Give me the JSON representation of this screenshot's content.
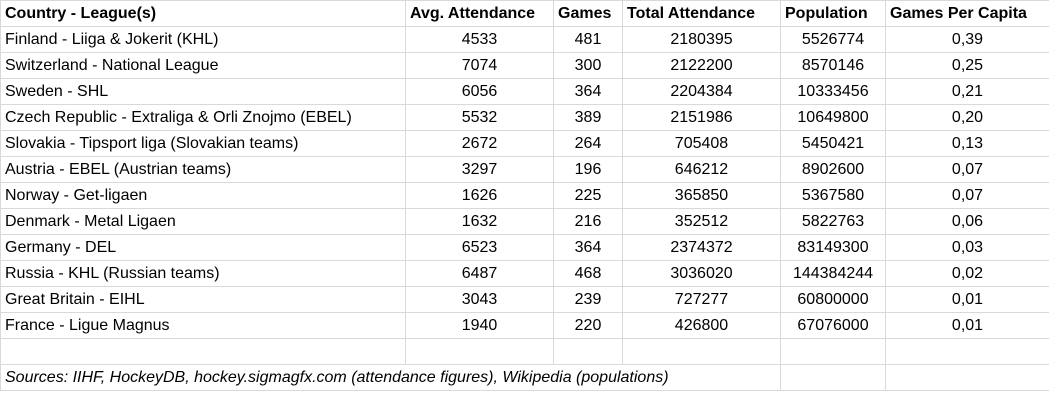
{
  "headers": [
    "Country - League(s)",
    "Avg. Attendance",
    "Games",
    "Total Attendance",
    "Population",
    "Games Per Capita"
  ],
  "rows": [
    [
      "Finland - Liiga & Jokerit (KHL)",
      "4533",
      "481",
      "2180395",
      "5526774",
      "0,39"
    ],
    [
      "Switzerland - National League",
      "7074",
      "300",
      "2122200",
      "8570146",
      "0,25"
    ],
    [
      "Sweden - SHL",
      "6056",
      "364",
      "2204384",
      "10333456",
      "0,21"
    ],
    [
      "Czech Republic - Extraliga & Orli Znojmo (EBEL)",
      "5532",
      "389",
      "2151986",
      "10649800",
      "0,20"
    ],
    [
      "Slovakia - Tipsport liga (Slovakian teams)",
      "2672",
      "264",
      "705408",
      "5450421",
      "0,13"
    ],
    [
      "Austria - EBEL (Austrian teams)",
      "3297",
      "196",
      "646212",
      "8902600",
      "0,07"
    ],
    [
      "Norway - Get-ligaen",
      "1626",
      "225",
      "365850",
      "5367580",
      "0,07"
    ],
    [
      "Denmark - Metal Ligaen",
      "1632",
      "216",
      "352512",
      "5822763",
      "0,06"
    ],
    [
      "Germany - DEL",
      "6523",
      "364",
      "2374372",
      "83149300",
      "0,03"
    ],
    [
      "Russia - KHL (Russian teams)",
      "6487",
      "468",
      "3036020",
      "144384244",
      "0,02"
    ],
    [
      "Great Britain - EIHL",
      "3043",
      "239",
      "727277",
      "60800000",
      "0,01"
    ],
    [
      "France - Ligue Magnus",
      "1940",
      "220",
      "426800",
      "67076000",
      "0,01"
    ]
  ],
  "note": "Sources: IIHF, HockeyDB, hockey.sigmagfx.com (attendance figures), Wikipedia (populations)"
}
